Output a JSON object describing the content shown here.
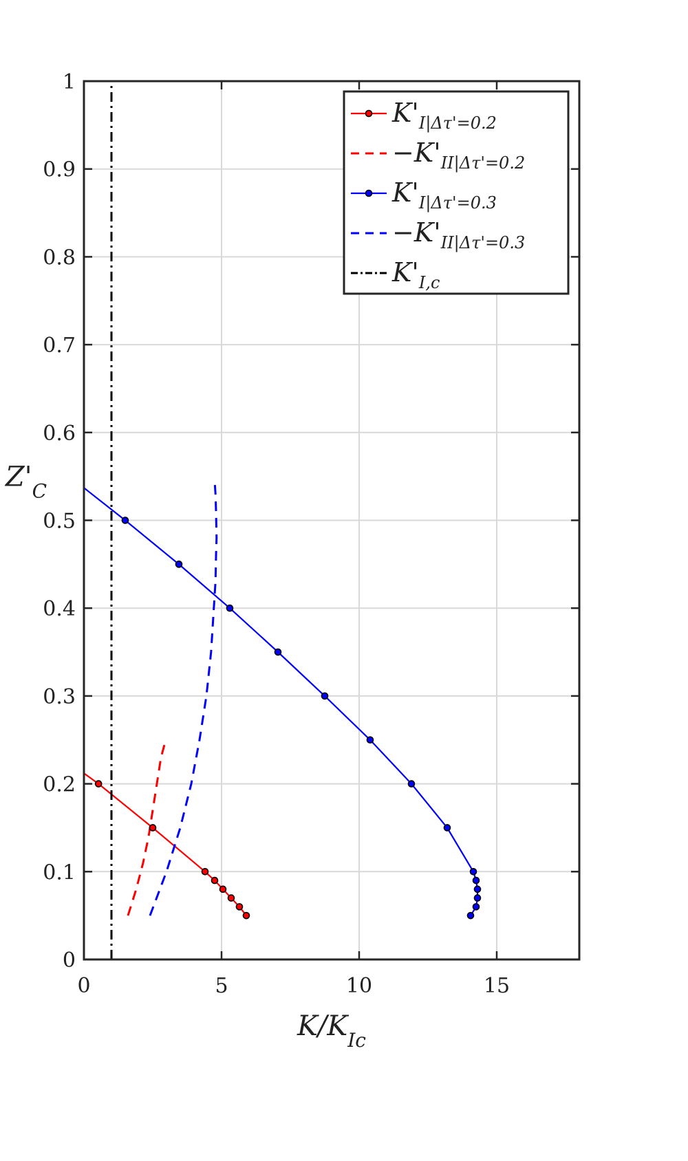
{
  "chart_data": {
    "type": "line",
    "xlabel": "K/K_Ic",
    "ylabel": "Z'_C",
    "xlim": [
      0,
      18
    ],
    "ylim": [
      0,
      1
    ],
    "xticks": [
      0,
      5,
      10,
      15
    ],
    "yticks": [
      0,
      0.1,
      0.2,
      0.3,
      0.4,
      0.5,
      0.6,
      0.7,
      0.8,
      0.9,
      1
    ],
    "xtick_labels": [
      "0",
      "5",
      "10",
      "15"
    ],
    "ytick_labels": [
      "0",
      "0.1",
      "0.2",
      "0.3",
      "0.4",
      "0.5",
      "0.6",
      "0.7",
      "0.8",
      "0.9",
      "1"
    ],
    "grid": true,
    "legend_position": "top-right",
    "series": [
      {
        "name": "K'_I |Δτ'=0.2",
        "label_main": "K'",
        "label_sub": "I",
        "label_cond": "|Δτ'=0.2",
        "color": "#ff0000",
        "style": "solid",
        "markers": true,
        "line_x": [
          0.0,
          0.53
        ],
        "line_y": [
          0.212,
          0.2
        ],
        "x": [
          0.53,
          2.5,
          4.4,
          4.75,
          5.05,
          5.35,
          5.65,
          5.9
        ],
        "y": [
          0.2,
          0.15,
          0.1,
          0.09,
          0.08,
          0.07,
          0.06,
          0.05
        ]
      },
      {
        "name": "-K'_II |Δτ'=0.2",
        "label_main": "−K'",
        "label_sub": "II",
        "label_cond": "|Δτ'=0.2",
        "color": "#ff0000",
        "style": "dashed",
        "markers": false,
        "x": [
          1.6,
          1.9,
          2.15,
          2.35,
          2.5,
          2.65,
          2.8,
          2.93
        ],
        "y": [
          0.05,
          0.08,
          0.11,
          0.14,
          0.17,
          0.2,
          0.23,
          0.245
        ]
      },
      {
        "name": "K'_I |Δτ'=0.3",
        "label_main": "K'",
        "label_sub": "I",
        "label_cond": "|Δτ'=0.3",
        "color": "#0000ff",
        "style": "solid",
        "markers": true,
        "line_x": [
          0.0,
          1.5
        ],
        "line_y": [
          0.537,
          0.5
        ],
        "x": [
          1.5,
          3.45,
          5.3,
          7.05,
          8.75,
          10.4,
          11.9,
          13.2,
          14.15,
          14.25,
          14.3,
          14.3,
          14.25,
          14.05
        ],
        "y": [
          0.5,
          0.45,
          0.4,
          0.35,
          0.3,
          0.25,
          0.2,
          0.15,
          0.1,
          0.09,
          0.08,
          0.07,
          0.06,
          0.05
        ]
      },
      {
        "name": "-K'_II |Δτ'=0.3",
        "label_main": "−K'",
        "label_sub": "II",
        "label_cond": "|Δτ'=0.3",
        "color": "#0000ff",
        "style": "dashed",
        "markers": false,
        "x": [
          2.4,
          3.0,
          3.5,
          3.9,
          4.2,
          4.45,
          4.62,
          4.72,
          4.78,
          4.8,
          4.82,
          4.8,
          4.78,
          4.75
        ],
        "y": [
          0.05,
          0.1,
          0.15,
          0.2,
          0.25,
          0.3,
          0.35,
          0.4,
          0.43,
          0.46,
          0.48,
          0.51,
          0.53,
          0.545
        ]
      },
      {
        "name": "K'_I,c",
        "label_main": "K'",
        "label_sub": "I,c",
        "label_cond": "",
        "color": "#000000",
        "style": "dashdot",
        "markers": false,
        "x": [
          1,
          1
        ],
        "y": [
          0,
          1
        ]
      }
    ]
  }
}
